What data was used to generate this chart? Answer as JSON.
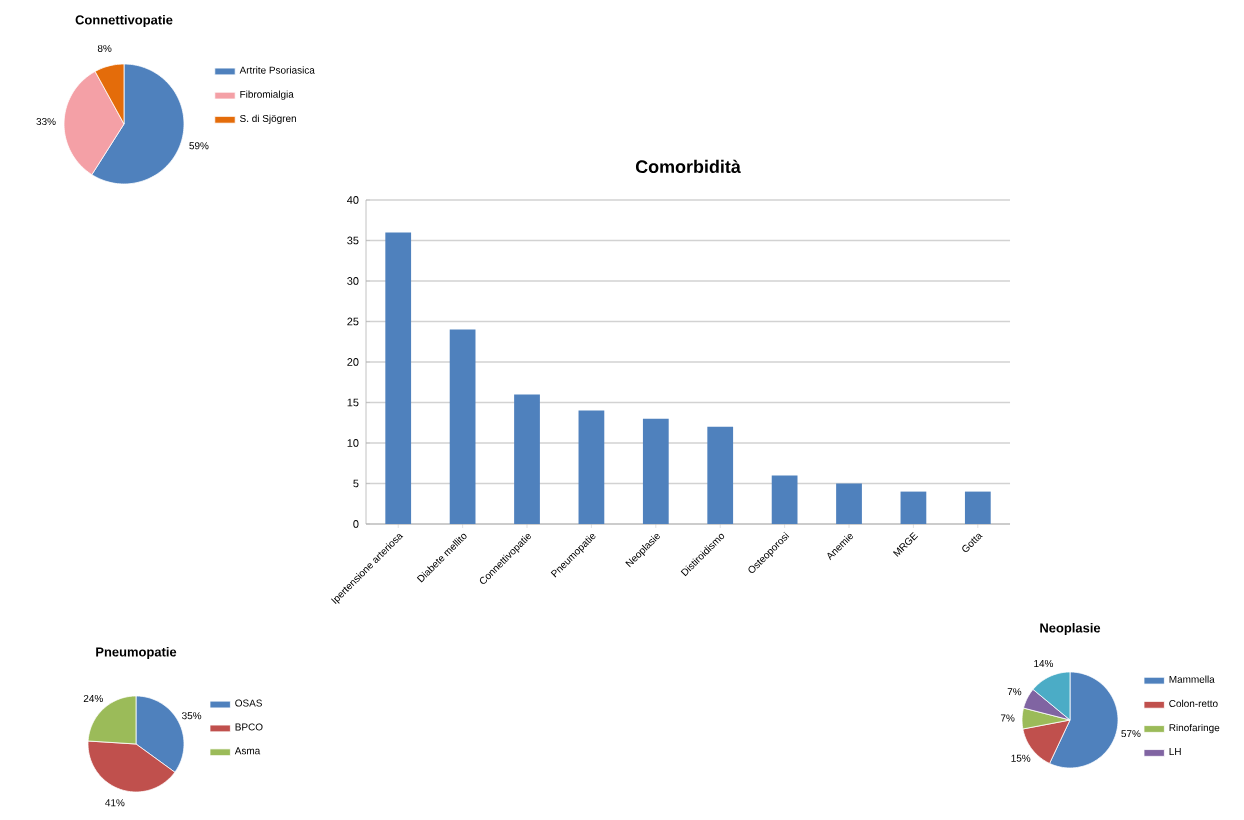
{
  "chart_data": [
    {
      "type": "pie",
      "title": "Connettivopatie",
      "categories": [
        "Artrite Psoriasica",
        "Fibromialgia",
        "S. di Sjögren"
      ],
      "values": [
        59,
        33,
        8
      ],
      "colors": [
        "#4f81bd",
        "#f4a0a6",
        "#e46c0a"
      ],
      "value_labels": [
        "59%",
        "33%",
        "8%"
      ],
      "legend": "right"
    },
    {
      "type": "bar",
      "title": "Comorbidità",
      "categories": [
        "Ipertensione arteriosa",
        "Diabete mellito",
        "Connettivopatie",
        "Pneumopatie",
        "Neoplasie",
        "Distiroidismo",
        "Osteoporosi",
        "Anemie",
        "MRGE",
        "Gotta"
      ],
      "values": [
        36,
        24,
        16,
        14,
        13,
        12,
        6,
        5,
        4,
        4
      ],
      "color": "#4f81bd",
      "ylim": [
        0,
        40
      ],
      "yticks": [
        0,
        5,
        10,
        15,
        20,
        25,
        30,
        35,
        40
      ],
      "grid": "y"
    },
    {
      "type": "pie",
      "title": "Pneumopatie",
      "categories": [
        "OSAS",
        "BPCO",
        "Asma"
      ],
      "values": [
        35,
        41,
        24
      ],
      "colors": [
        "#4f81bd",
        "#c0504d",
        "#9bbb59"
      ],
      "value_labels": [
        "35%",
        "41%",
        "24%"
      ],
      "legend": "right"
    },
    {
      "type": "pie",
      "title": "Neoplasie",
      "categories": [
        "Mammella",
        "Colon-retto",
        "Rinofaringe",
        "LH",
        null
      ],
      "values": [
        57,
        15,
        7,
        7,
        14
      ],
      "colors": [
        "#4f81bd",
        "#c0504d",
        "#9bbb59",
        "#8064a2",
        "#4bacc6"
      ],
      "value_labels": [
        "57%",
        "15%",
        "7%",
        "7%",
        "14%"
      ],
      "legend": "right"
    }
  ]
}
